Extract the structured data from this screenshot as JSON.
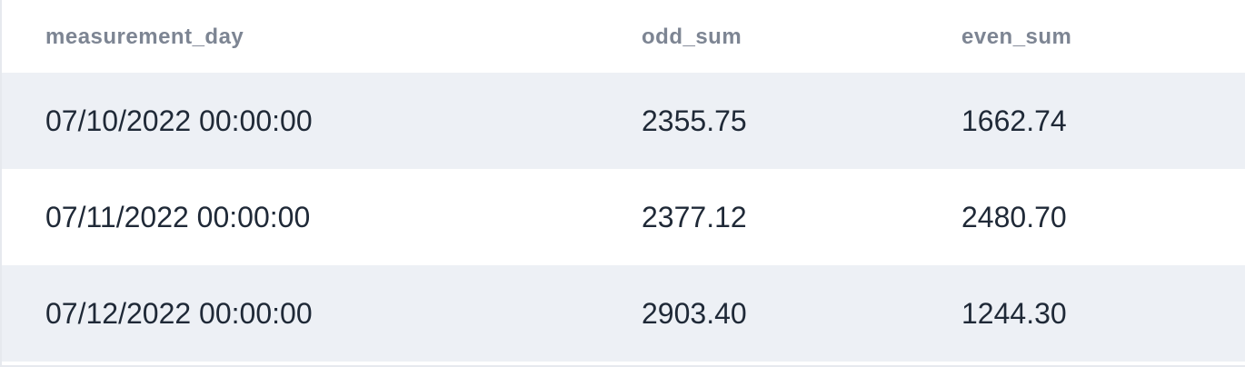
{
  "table": {
    "columns": [
      "measurement_day",
      "odd_sum",
      "even_sum"
    ],
    "rows": [
      [
        "07/10/2022 00:00:00",
        "2355.75",
        "1662.74"
      ],
      [
        "07/11/2022 00:00:00",
        "2377.12",
        "2480.70"
      ],
      [
        "07/12/2022 00:00:00",
        "2903.40",
        "1244.30"
      ]
    ]
  }
}
